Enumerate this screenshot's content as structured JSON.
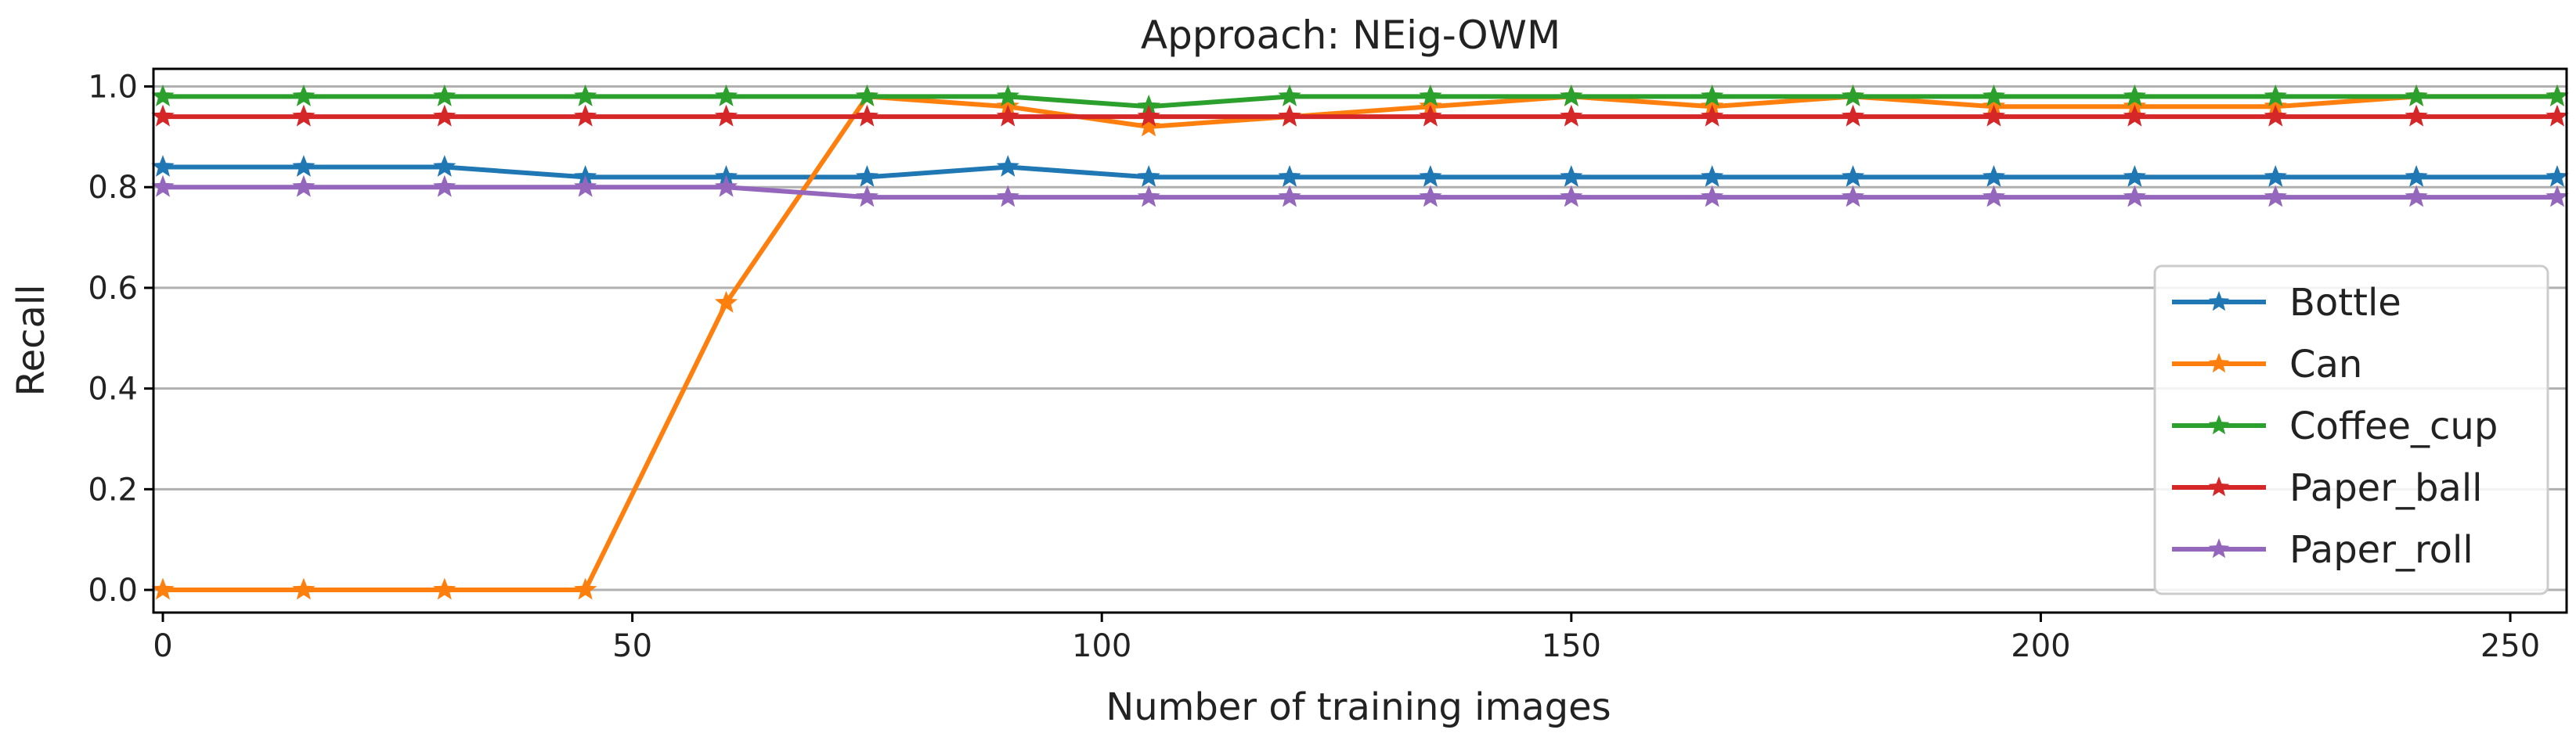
{
  "chart_data": {
    "type": "line",
    "title": "Approach: NEig-OWM",
    "xlabel": "Number of training images",
    "ylabel": "Recall",
    "x": [
      0,
      15,
      30,
      45,
      60,
      75,
      90,
      105,
      120,
      135,
      150,
      165,
      180,
      195,
      210,
      225,
      240,
      255
    ],
    "xlim": [
      -1,
      256
    ],
    "ylim": [
      -0.045,
      1.035
    ],
    "xticks": [
      0,
      50,
      100,
      150,
      200,
      250
    ],
    "xtick_labels": [
      "0",
      "50",
      "100",
      "150",
      "200",
      "250"
    ],
    "yticks": [
      0.0,
      0.2,
      0.4,
      0.6,
      0.8,
      1.0
    ],
    "ytick_labels": [
      "0.0",
      "0.2",
      "0.4",
      "0.6",
      "0.8",
      "1.0"
    ],
    "grid": "horizontal",
    "legend_position": "lower-right",
    "marker": "star",
    "series": [
      {
        "name": "Bottle",
        "color": "#1f77b4",
        "values": [
          0.84,
          0.84,
          0.84,
          0.82,
          0.82,
          0.82,
          0.84,
          0.82,
          0.82,
          0.82,
          0.82,
          0.82,
          0.82,
          0.82,
          0.82,
          0.82,
          0.82,
          0.82
        ]
      },
      {
        "name": "Can",
        "color": "#ff7f0e",
        "values": [
          0.0,
          0.0,
          0.0,
          0.0,
          0.57,
          0.98,
          0.96,
          0.92,
          0.94,
          0.96,
          0.98,
          0.96,
          0.98,
          0.96,
          0.96,
          0.96,
          0.98,
          0.98
        ]
      },
      {
        "name": "Coffee_cup",
        "color": "#2ca02c",
        "values": [
          0.98,
          0.98,
          0.98,
          0.98,
          0.98,
          0.98,
          0.98,
          0.96,
          0.98,
          0.98,
          0.98,
          0.98,
          0.98,
          0.98,
          0.98,
          0.98,
          0.98,
          0.98
        ]
      },
      {
        "name": "Paper_ball",
        "color": "#d62728",
        "values": [
          0.94,
          0.94,
          0.94,
          0.94,
          0.94,
          0.94,
          0.94,
          0.94,
          0.94,
          0.94,
          0.94,
          0.94,
          0.94,
          0.94,
          0.94,
          0.94,
          0.94,
          0.94
        ]
      },
      {
        "name": "Paper_roll",
        "color": "#9467bd",
        "values": [
          0.8,
          0.8,
          0.8,
          0.8,
          0.8,
          0.78,
          0.78,
          0.78,
          0.78,
          0.78,
          0.78,
          0.78,
          0.78,
          0.78,
          0.78,
          0.78,
          0.78,
          0.78
        ]
      }
    ]
  }
}
